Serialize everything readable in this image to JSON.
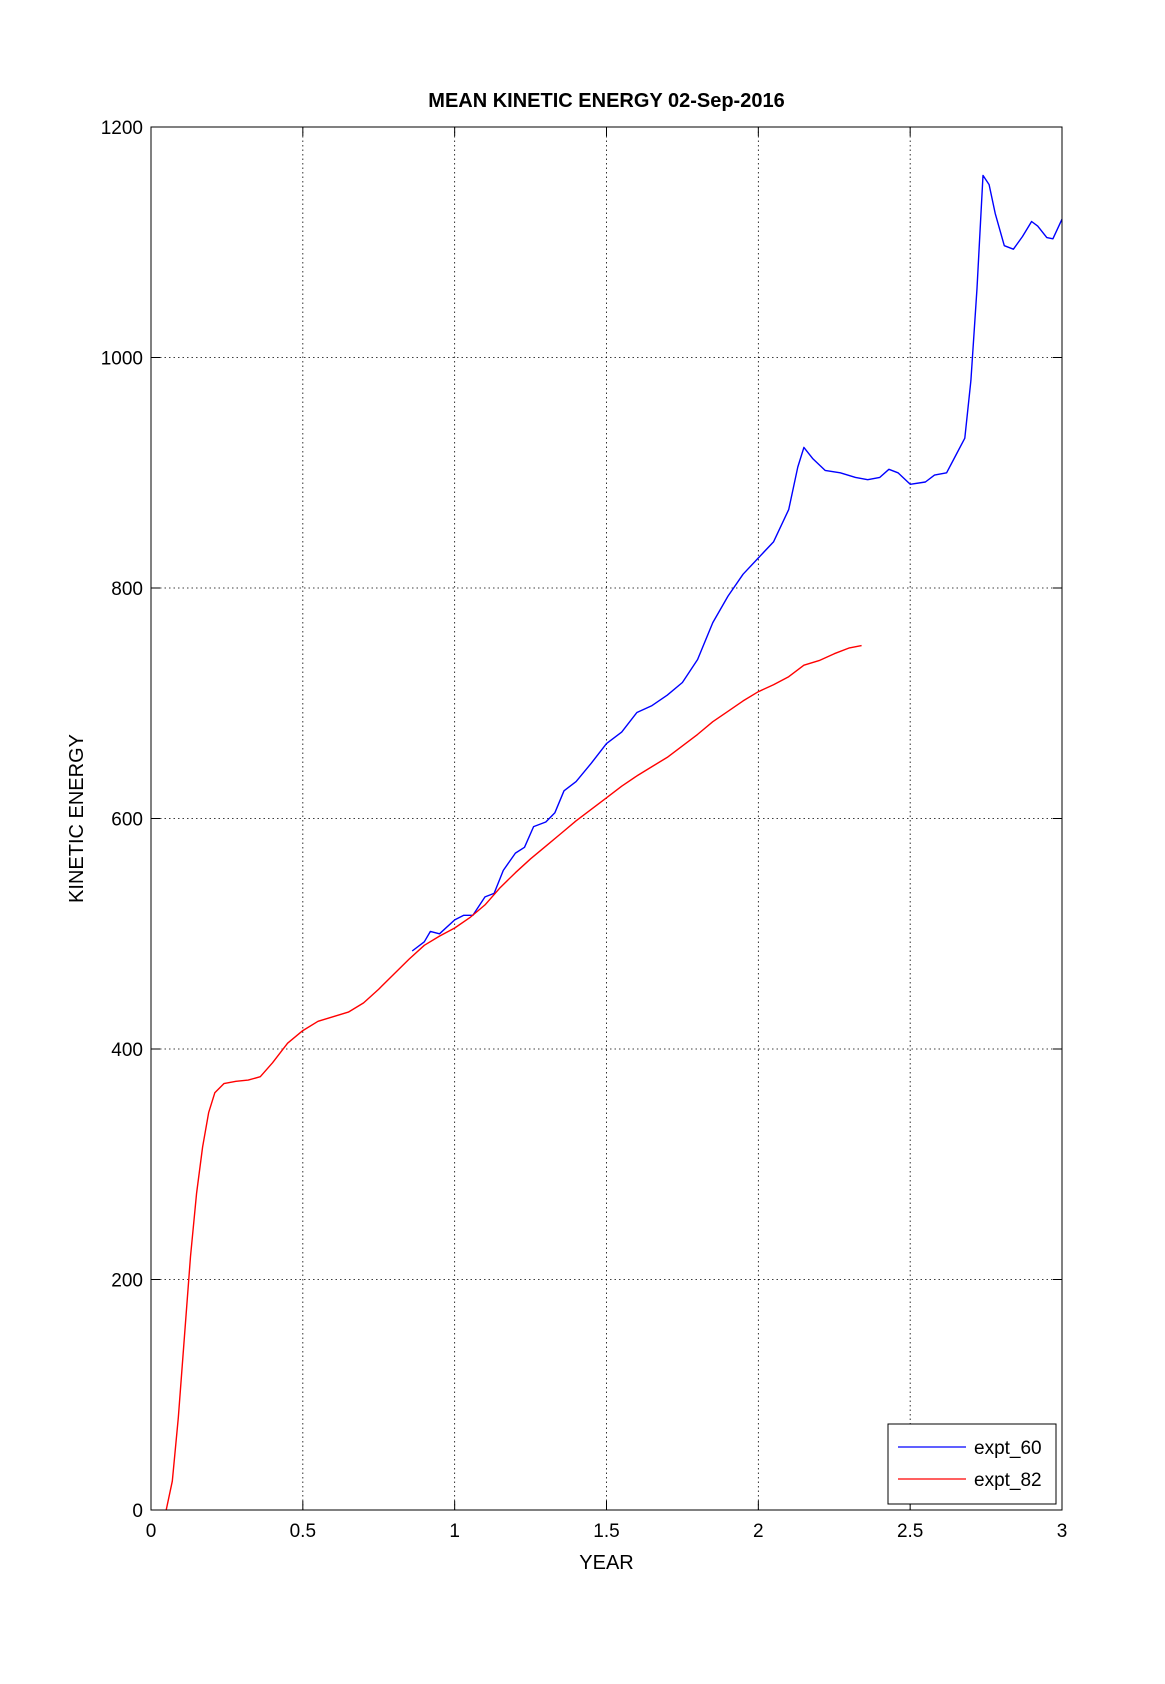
{
  "chart_data": {
    "type": "line",
    "title": "MEAN KINETIC ENERGY 02-Sep-2016",
    "xlabel": "YEAR",
    "ylabel": "KINETIC ENERGY",
    "xlim": [
      0,
      3
    ],
    "ylim": [
      0,
      1200
    ],
    "xticks": [
      0,
      0.5,
      1,
      1.5,
      2,
      2.5,
      3
    ],
    "xtick_labels": [
      "0",
      "0.5",
      "1",
      "1.5",
      "2",
      "2.5",
      "3"
    ],
    "yticks": [
      0,
      200,
      400,
      600,
      800,
      1000,
      1200
    ],
    "ytick_labels": [
      "0",
      "200",
      "400",
      "600",
      "800",
      "1000",
      "1200"
    ],
    "grid": true,
    "legend_position": "bottom-right",
    "series": [
      {
        "name": "expt_60",
        "color": "#0000ff",
        "points": [
          [
            0.86,
            485
          ],
          [
            0.9,
            493
          ],
          [
            0.92,
            502
          ],
          [
            0.95,
            500
          ],
          [
            1.0,
            512
          ],
          [
            1.03,
            516
          ],
          [
            1.06,
            516
          ],
          [
            1.1,
            532
          ],
          [
            1.13,
            535
          ],
          [
            1.16,
            555
          ],
          [
            1.2,
            570
          ],
          [
            1.23,
            575
          ],
          [
            1.26,
            593
          ],
          [
            1.3,
            597
          ],
          [
            1.33,
            605
          ],
          [
            1.36,
            624
          ],
          [
            1.4,
            632
          ],
          [
            1.45,
            648
          ],
          [
            1.5,
            665
          ],
          [
            1.55,
            675
          ],
          [
            1.6,
            692
          ],
          [
            1.65,
            698
          ],
          [
            1.7,
            707
          ],
          [
            1.75,
            718
          ],
          [
            1.8,
            738
          ],
          [
            1.85,
            770
          ],
          [
            1.9,
            793
          ],
          [
            1.95,
            812
          ],
          [
            2.0,
            826
          ],
          [
            2.05,
            840
          ],
          [
            2.1,
            868
          ],
          [
            2.13,
            905
          ],
          [
            2.15,
            922
          ],
          [
            2.18,
            912
          ],
          [
            2.22,
            902
          ],
          [
            2.27,
            900
          ],
          [
            2.32,
            896
          ],
          [
            2.36,
            894
          ],
          [
            2.4,
            896
          ],
          [
            2.43,
            903
          ],
          [
            2.46,
            900
          ],
          [
            2.5,
            890
          ],
          [
            2.55,
            892
          ],
          [
            2.58,
            898
          ],
          [
            2.62,
            900
          ],
          [
            2.65,
            915
          ],
          [
            2.68,
            930
          ],
          [
            2.7,
            980
          ],
          [
            2.72,
            1060
          ],
          [
            2.74,
            1158
          ],
          [
            2.76,
            1150
          ],
          [
            2.78,
            1125
          ],
          [
            2.81,
            1097
          ],
          [
            2.84,
            1094
          ],
          [
            2.87,
            1105
          ],
          [
            2.9,
            1118
          ],
          [
            2.92,
            1114
          ],
          [
            2.95,
            1104
          ],
          [
            2.97,
            1103
          ],
          [
            3.0,
            1120
          ]
        ]
      },
      {
        "name": "expt_82",
        "color": "#ff0000",
        "points": [
          [
            0.05,
            0
          ],
          [
            0.07,
            25
          ],
          [
            0.09,
            80
          ],
          [
            0.11,
            150
          ],
          [
            0.13,
            220
          ],
          [
            0.15,
            275
          ],
          [
            0.17,
            315
          ],
          [
            0.19,
            345
          ],
          [
            0.21,
            362
          ],
          [
            0.24,
            370
          ],
          [
            0.28,
            372
          ],
          [
            0.32,
            373
          ],
          [
            0.36,
            376
          ],
          [
            0.4,
            388
          ],
          [
            0.45,
            405
          ],
          [
            0.5,
            416
          ],
          [
            0.55,
            424
          ],
          [
            0.6,
            428
          ],
          [
            0.65,
            432
          ],
          [
            0.7,
            440
          ],
          [
            0.75,
            452
          ],
          [
            0.8,
            465
          ],
          [
            0.85,
            478
          ],
          [
            0.9,
            490
          ],
          [
            0.95,
            498
          ],
          [
            1.0,
            505
          ],
          [
            1.05,
            514
          ],
          [
            1.1,
            525
          ],
          [
            1.15,
            540
          ],
          [
            1.2,
            553
          ],
          [
            1.25,
            565
          ],
          [
            1.3,
            576
          ],
          [
            1.35,
            587
          ],
          [
            1.4,
            598
          ],
          [
            1.45,
            608
          ],
          [
            1.5,
            618
          ],
          [
            1.55,
            628
          ],
          [
            1.6,
            637
          ],
          [
            1.65,
            645
          ],
          [
            1.7,
            653
          ],
          [
            1.75,
            663
          ],
          [
            1.8,
            673
          ],
          [
            1.85,
            684
          ],
          [
            1.9,
            693
          ],
          [
            1.95,
            702
          ],
          [
            2.0,
            710
          ],
          [
            2.05,
            716
          ],
          [
            2.1,
            723
          ],
          [
            2.15,
            733
          ],
          [
            2.2,
            737
          ],
          [
            2.25,
            743
          ],
          [
            2.3,
            748
          ],
          [
            2.34,
            750
          ]
        ]
      }
    ]
  }
}
